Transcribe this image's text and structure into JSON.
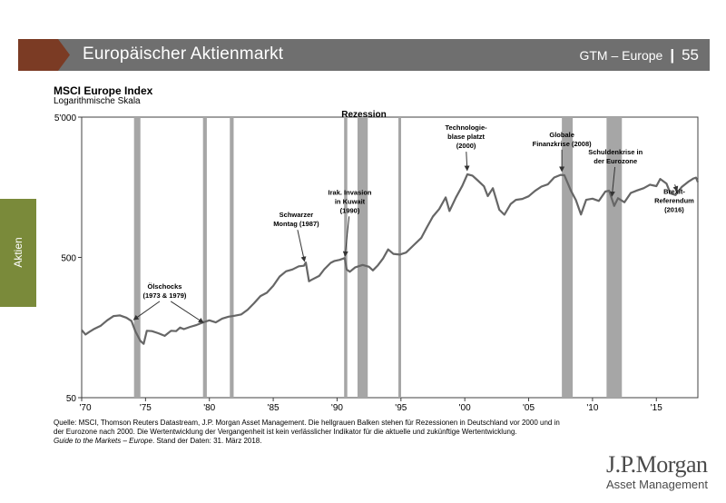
{
  "header": {
    "title": "Europäischer Aktienmarkt",
    "section": "GTM – Europe",
    "page": "55",
    "colors": {
      "bar": "#6f6f6f",
      "chevron": "#7b3b24"
    }
  },
  "side_tab": {
    "label": "Aktien",
    "color": "#7a8a3a"
  },
  "footnote": {
    "line1": "Quelle: MSCI, Thomson Reuters Datastream, J.P. Morgan Asset Management. Die hellgrauen Balken stehen für Rezessionen in Deutschland vor 2000 und in der Eurozone nach 2000. Die Wertentwicklung der Vergangenheit ist kein verlässlicher Indikator für die aktuelle und zukünftige Wertentwicklung.",
    "guide": "Guide to the Markets – Europe",
    "date": ". Stand der Daten: 31. März 2018."
  },
  "logo": {
    "name": "J.P.Morgan",
    "sub": "Asset Management"
  },
  "chart_data": {
    "type": "line",
    "title": "MSCI Europe Index",
    "subtitle": "Logarithmische Skala",
    "scale": "log",
    "xlim": [
      1970,
      2018.25
    ],
    "ylim": [
      50,
      5000
    ],
    "yticks": [
      {
        "value": 50,
        "label": "50"
      },
      {
        "value": 500,
        "label": "500"
      },
      {
        "value": 5000,
        "label": "5'000"
      }
    ],
    "xticks": [
      {
        "value": 1970,
        "label": "'70"
      },
      {
        "value": 1975,
        "label": "'75"
      },
      {
        "value": 1980,
        "label": "'80"
      },
      {
        "value": 1985,
        "label": "'85"
      },
      {
        "value": 1990,
        "label": "'90"
      },
      {
        "value": 1995,
        "label": "'95"
      },
      {
        "value": 2000,
        "label": "'00"
      },
      {
        "value": 2005,
        "label": "'05"
      },
      {
        "value": 2010,
        "label": "'10"
      },
      {
        "value": 2015,
        "label": "'15"
      }
    ],
    "line_color": "#666666",
    "recession_color": "#a6a6a6",
    "recessions": [
      [
        1974.1,
        1974.6
      ],
      [
        1979.5,
        1979.8
      ],
      [
        1981.6,
        1981.9
      ],
      [
        1990.55,
        1990.8
      ],
      [
        1991.6,
        1992.4
      ],
      [
        1994.8,
        1995.0
      ],
      [
        2007.6,
        2008.45
      ],
      [
        2011.1,
        2012.3
      ]
    ],
    "series": [
      {
        "name": "MSCI Europe Index",
        "points": [
          [
            1970.0,
            152
          ],
          [
            1970.3,
            141
          ],
          [
            1970.6,
            147
          ],
          [
            1971.0,
            155
          ],
          [
            1971.5,
            163
          ],
          [
            1972.0,
            178
          ],
          [
            1972.5,
            191
          ],
          [
            1973.0,
            193
          ],
          [
            1973.5,
            186
          ],
          [
            1973.9,
            176
          ],
          [
            1974.2,
            149
          ],
          [
            1974.6,
            127
          ],
          [
            1974.85,
            121
          ],
          [
            1975.1,
            150
          ],
          [
            1975.5,
            149
          ],
          [
            1976.0,
            144
          ],
          [
            1976.5,
            138
          ],
          [
            1977.0,
            150
          ],
          [
            1977.4,
            149
          ],
          [
            1977.7,
            158
          ],
          [
            1978.0,
            154
          ],
          [
            1978.5,
            160
          ],
          [
            1979.0,
            165
          ],
          [
            1979.5,
            172
          ],
          [
            1980.0,
            178
          ],
          [
            1980.5,
            172
          ],
          [
            1981.0,
            183
          ],
          [
            1981.5,
            189
          ],
          [
            1982.0,
            192
          ],
          [
            1982.5,
            196
          ],
          [
            1983.0,
            212
          ],
          [
            1983.5,
            236
          ],
          [
            1984.0,
            265
          ],
          [
            1984.5,
            280
          ],
          [
            1985.0,
            314
          ],
          [
            1985.5,
            365
          ],
          [
            1986.0,
            398
          ],
          [
            1986.5,
            410
          ],
          [
            1987.0,
            432
          ],
          [
            1987.4,
            436
          ],
          [
            1987.55,
            460
          ],
          [
            1987.8,
            338
          ],
          [
            1988.0,
            346
          ],
          [
            1988.6,
            369
          ],
          [
            1989.0,
            412
          ],
          [
            1989.5,
            457
          ],
          [
            1989.8,
            472
          ],
          [
            1990.2,
            480
          ],
          [
            1990.6,
            495
          ],
          [
            1990.75,
            410
          ],
          [
            1991.0,
            395
          ],
          [
            1991.4,
            424
          ],
          [
            1992.0,
            442
          ],
          [
            1992.5,
            429
          ],
          [
            1992.8,
            404
          ],
          [
            1993.2,
            440
          ],
          [
            1993.6,
            491
          ],
          [
            1994.0,
            570
          ],
          [
            1994.4,
            530
          ],
          [
            1994.9,
            524
          ],
          [
            1995.4,
            541
          ],
          [
            1996.0,
            611
          ],
          [
            1996.6,
            690
          ],
          [
            1997.0,
            810
          ],
          [
            1997.5,
            978
          ],
          [
            1998.0,
            1107
          ],
          [
            1998.5,
            1340
          ],
          [
            1998.8,
            1071
          ],
          [
            1999.3,
            1334
          ],
          [
            1999.8,
            1618
          ],
          [
            2000.2,
            1955
          ],
          [
            2000.6,
            1916
          ],
          [
            2001.0,
            1776
          ],
          [
            2001.5,
            1607
          ],
          [
            2001.8,
            1367
          ],
          [
            2002.2,
            1557
          ],
          [
            2002.7,
            1093
          ],
          [
            2003.1,
            1007
          ],
          [
            2003.6,
            1203
          ],
          [
            2004.0,
            1287
          ],
          [
            2004.5,
            1305
          ],
          [
            2005.0,
            1364
          ],
          [
            2005.5,
            1490
          ],
          [
            2006.0,
            1598
          ],
          [
            2006.5,
            1658
          ],
          [
            2007.0,
            1855
          ],
          [
            2007.5,
            1939
          ],
          [
            2007.8,
            1927
          ],
          [
            2008.3,
            1500
          ],
          [
            2008.7,
            1280
          ],
          [
            2009.1,
            1011
          ],
          [
            2009.5,
            1287
          ],
          [
            2010.0,
            1312
          ],
          [
            2010.5,
            1264
          ],
          [
            2011.0,
            1473
          ],
          [
            2011.3,
            1495
          ],
          [
            2011.7,
            1164
          ],
          [
            2012.0,
            1321
          ],
          [
            2012.5,
            1235
          ],
          [
            2013.0,
            1441
          ],
          [
            2013.5,
            1503
          ],
          [
            2014.0,
            1557
          ],
          [
            2014.5,
            1649
          ],
          [
            2015.0,
            1611
          ],
          [
            2015.3,
            1812
          ],
          [
            2015.8,
            1678
          ],
          [
            2016.1,
            1430
          ],
          [
            2016.5,
            1391
          ],
          [
            2017.0,
            1593
          ],
          [
            2017.5,
            1730
          ],
          [
            2017.9,
            1826
          ],
          [
            2018.1,
            1853
          ],
          [
            2018.25,
            1721
          ]
        ]
      }
    ],
    "annotations": [
      {
        "lines": [
          "Rezession"
        ],
        "bold": true,
        "x": 1992.1,
        "y": 5000
      },
      {
        "lines": [
          "Ölschocks",
          "(1973 & 1979)"
        ],
        "x": 1976.5,
        "y": 258,
        "arrows": [
          [
            1973.9,
            176
          ],
          [
            1979.7,
            168
          ]
        ]
      },
      {
        "lines": [
          "Schwarzer",
          "Montag (1987)"
        ],
        "x": 1986.8,
        "y": 834,
        "arrows": [
          [
            1987.5,
            450
          ]
        ]
      },
      {
        "lines": [
          "Irak. Invasion",
          "in Kuwait",
          "(1990)"
        ],
        "x": 1991.0,
        "y": 1041,
        "arrows": [
          [
            1990.6,
            490
          ]
        ]
      },
      {
        "lines": [
          "Technologie-",
          "blase platzt",
          "(2000)"
        ],
        "x": 2000.1,
        "y": 3007,
        "arrows": [
          [
            2000.2,
            2000
          ]
        ]
      },
      {
        "lines": [
          "Globale",
          "Finanzkrise (2008)"
        ],
        "x": 2007.6,
        "y": 3112,
        "arrows": [
          [
            2007.6,
            1970
          ]
        ]
      },
      {
        "lines": [
          "Schuldenkrise in",
          "der Eurozone"
        ],
        "x": 2011.8,
        "y": 2341,
        "arrows": [
          [
            2011.5,
            1310
          ]
        ]
      },
      {
        "lines": [
          "Brexit-",
          "Referendum",
          "(2016)"
        ],
        "x": 2016.4,
        "y": 1057,
        "arrows": [
          [
            2016.7,
            1431
          ]
        ]
      }
    ]
  }
}
